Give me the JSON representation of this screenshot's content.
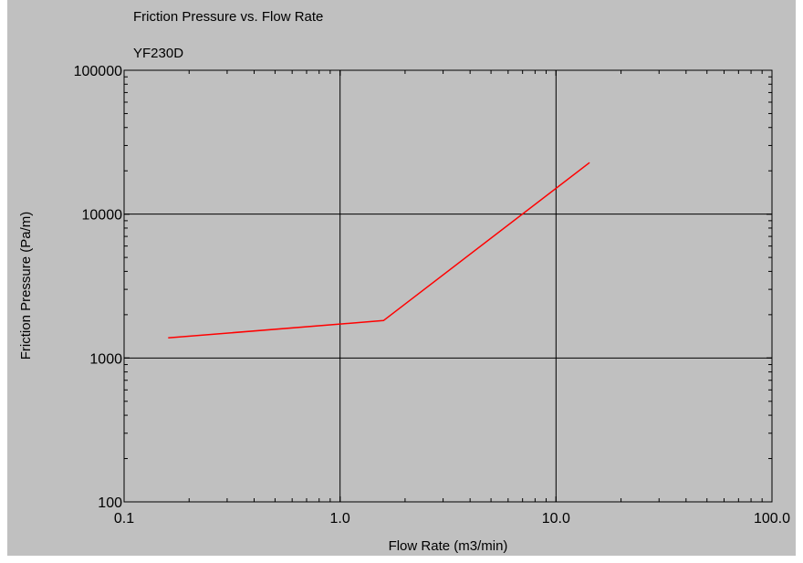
{
  "chart_data": {
    "type": "line",
    "title": "Friction Pressure vs. Flow Rate",
    "subtitle": "YF230D",
    "xlabel": "Flow Rate (m3/min)",
    "ylabel": "Friction Pressure (Pa/m)",
    "xscale": "log",
    "yscale": "log",
    "xlim": [
      0.1,
      100
    ],
    "ylim": [
      100,
      100000
    ],
    "xticks": [
      "0.1",
      "1.0",
      "10.0",
      "100.0"
    ],
    "yticks": [
      "100",
      "1000",
      "10000",
      "100000"
    ],
    "grid": true,
    "legend": "none",
    "series": [
      {
        "color": "#ff0000",
        "x": [
          0.16,
          1.59,
          14.3
        ],
        "y": [
          1380,
          1820,
          22800
        ]
      }
    ]
  }
}
